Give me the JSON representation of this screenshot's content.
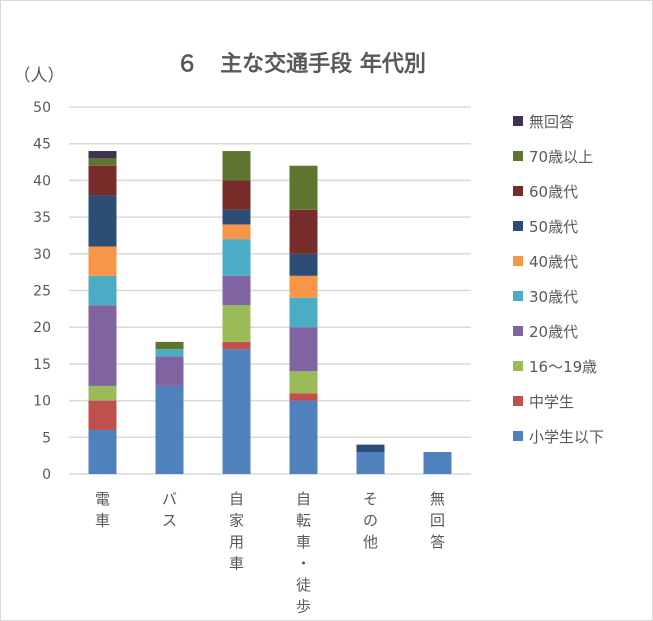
{
  "chart_data": {
    "type": "bar",
    "stacked": true,
    "title": "６　主な交通手段 年代別",
    "ylabel": "（人）",
    "xlabel": "",
    "ylim": [
      0,
      50
    ],
    "yticks": [
      0,
      5,
      10,
      15,
      20,
      25,
      30,
      35,
      40,
      45,
      50
    ],
    "grid": true,
    "legend_position": "right",
    "categories": [
      "電車",
      "バス",
      "自家用車",
      "自転車・徒歩",
      "その他",
      "無回答"
    ],
    "series": [
      {
        "name": "小学生以下",
        "color": "#4f81bd",
        "values": [
          6,
          12,
          17,
          10,
          3,
          3
        ]
      },
      {
        "name": "中学生",
        "color": "#c0504d",
        "values": [
          4,
          0,
          1,
          1,
          0,
          0
        ]
      },
      {
        "name": "16～19歳",
        "color": "#9bbb59",
        "values": [
          2,
          0,
          5,
          3,
          0,
          0
        ]
      },
      {
        "name": "20歳代",
        "color": "#8064a2",
        "values": [
          11,
          4,
          4,
          6,
          0,
          0
        ]
      },
      {
        "name": "30歳代",
        "color": "#4bacc6",
        "values": [
          4,
          1,
          5,
          4,
          0,
          0
        ]
      },
      {
        "name": "40歳代",
        "color": "#f79646",
        "values": [
          4,
          0,
          2,
          3,
          0,
          0
        ]
      },
      {
        "name": "50歳代",
        "color": "#2c4d75",
        "values": [
          7,
          0,
          2,
          3,
          1,
          0
        ]
      },
      {
        "name": "60歳代",
        "color": "#772c2a",
        "values": [
          4,
          0,
          4,
          6,
          0,
          0
        ]
      },
      {
        "name": "70歳以上",
        "color": "#5f7530",
        "values": [
          1,
          1,
          4,
          6,
          0,
          0
        ]
      },
      {
        "name": "無回答",
        "color": "#403151",
        "values": [
          1,
          0,
          0,
          0,
          0,
          0
        ]
      }
    ]
  }
}
